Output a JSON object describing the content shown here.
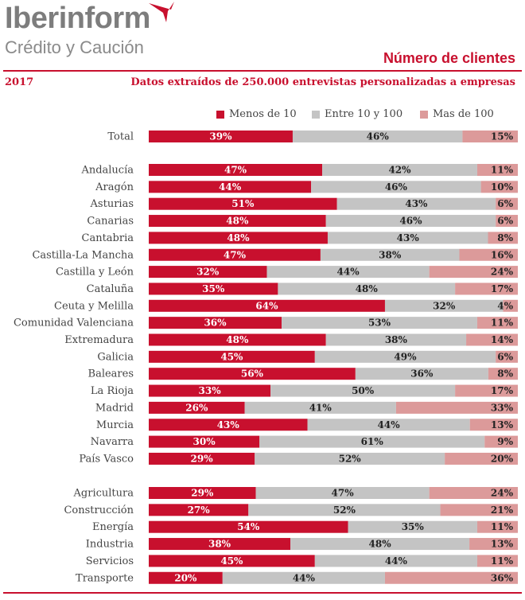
{
  "header": {
    "brand": "Iberinform",
    "brand_sub": "Crédito y Caución",
    "title": "Número de clientes",
    "year": "2017",
    "subtitle": "Datos extraídos de 250.000 entrevistas personalizadas a empresas"
  },
  "colors": {
    "accent": "#c8102e",
    "s1": "#c8102e",
    "s2": "#c4c4c4",
    "s3": "#dc9a9a"
  },
  "chart_data": {
    "type": "bar",
    "orientation": "horizontal",
    "stacked": true,
    "title": "Número de clientes",
    "legend": [
      "Menos de 10",
      "Entre 10 y 100",
      "Mas de 100"
    ],
    "legend_position": "top",
    "grid": false,
    "groups": [
      {
        "rows": [
          {
            "label": "Total",
            "values": [
              39,
              46,
              15
            ]
          }
        ]
      },
      {
        "rows": [
          {
            "label": "Andalucía",
            "values": [
              47,
              42,
              11
            ]
          },
          {
            "label": "Aragón",
            "values": [
              44,
              46,
              10
            ]
          },
          {
            "label": "Asturias",
            "values": [
              51,
              43,
              6
            ]
          },
          {
            "label": "Canarias",
            "values": [
              48,
              46,
              6
            ]
          },
          {
            "label": "Cantabria",
            "values": [
              48,
              43,
              8
            ]
          },
          {
            "label": "Castilla-La Mancha",
            "values": [
              47,
              38,
              16
            ]
          },
          {
            "label": "Castilla y León",
            "values": [
              32,
              44,
              24
            ]
          },
          {
            "label": "Cataluña",
            "values": [
              35,
              48,
              17
            ]
          },
          {
            "label": "Ceuta y Melilla",
            "values": [
              64,
              32,
              4
            ]
          },
          {
            "label": "Comunidad Valenciana",
            "values": [
              36,
              53,
              11
            ]
          },
          {
            "label": "Extremadura",
            "values": [
              48,
              38,
              14
            ]
          },
          {
            "label": "Galicia",
            "values": [
              45,
              49,
              6
            ]
          },
          {
            "label": "Baleares",
            "values": [
              56,
              36,
              8
            ]
          },
          {
            "label": "La Rioja",
            "values": [
              33,
              50,
              17
            ]
          },
          {
            "label": "Madrid",
            "values": [
              26,
              41,
              33
            ]
          },
          {
            "label": "Murcia",
            "values": [
              43,
              44,
              13
            ]
          },
          {
            "label": "Navarra",
            "values": [
              30,
              61,
              9
            ]
          },
          {
            "label": "País Vasco",
            "values": [
              29,
              52,
              20
            ]
          }
        ]
      },
      {
        "rows": [
          {
            "label": "Agricultura",
            "values": [
              29,
              47,
              24
            ]
          },
          {
            "label": "Construcción",
            "values": [
              27,
              52,
              21
            ]
          },
          {
            "label": "Energía",
            "values": [
              54,
              35,
              11
            ]
          },
          {
            "label": "Industria",
            "values": [
              38,
              48,
              13
            ]
          },
          {
            "label": "Servicios",
            "values": [
              45,
              44,
              11
            ]
          },
          {
            "label": "Transporte",
            "values": [
              20,
              44,
              36
            ]
          }
        ]
      }
    ],
    "value_suffix": "%"
  }
}
